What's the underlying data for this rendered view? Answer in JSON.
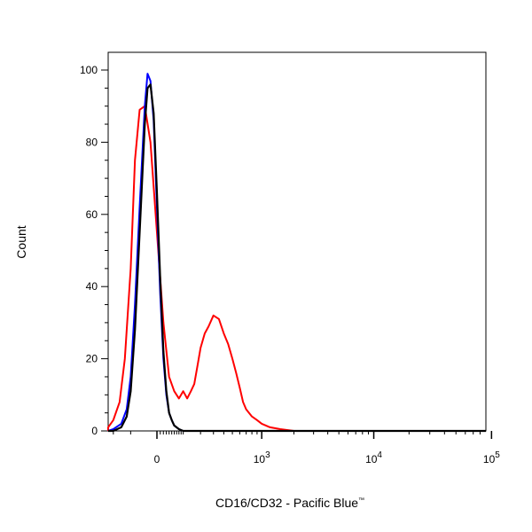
{
  "chart_data": {
    "type": "line",
    "title": "",
    "xlabel": "CD16/CD32 -  Pacific Blue",
    "xlabel_trademark": "™",
    "ylabel": "Count",
    "xscale": "biexponential",
    "xlim": [
      -300,
      200000
    ],
    "ylim": [
      0,
      105
    ],
    "y_ticks": [
      {
        "value": 0,
        "label": "0"
      },
      {
        "value": 20,
        "label": "20"
      },
      {
        "value": 40,
        "label": "40"
      },
      {
        "value": 60,
        "label": "60"
      },
      {
        "value": 80,
        "label": "80"
      },
      {
        "value": 100,
        "label": "100"
      }
    ],
    "x_ticks": [
      {
        "value": 0,
        "label": "0",
        "exp": ""
      },
      {
        "value": 1000,
        "label": "10",
        "exp": "3"
      },
      {
        "value": 10000,
        "label": "10",
        "exp": "4"
      },
      {
        "value": 100000,
        "label": "10",
        "exp": "5"
      }
    ],
    "grid": false,
    "legend": "none",
    "series": [
      {
        "color": "#ff0000",
        "x": [
          -300,
          -250,
          -200,
          -160,
          -130,
          -100,
          -80,
          -60,
          -40,
          -20,
          0,
          20,
          40,
          60,
          80,
          100,
          120,
          140,
          160,
          180,
          200,
          230,
          260,
          300,
          350,
          400,
          450,
          500,
          550,
          600,
          650,
          700,
          800,
          900,
          1000,
          1200,
          1500,
          2000,
          3000,
          10000,
          100000,
          200000
        ],
        "y": [
          0,
          1,
          3,
          8,
          20,
          45,
          75,
          89,
          90,
          80,
          55,
          30,
          15,
          11,
          9,
          11,
          9,
          11,
          13,
          18,
          23,
          27,
          29,
          32,
          31,
          27,
          24,
          20,
          16,
          12,
          8,
          6,
          4,
          3,
          2,
          1,
          0.5,
          0,
          0,
          0,
          0,
          0
        ]
      },
      {
        "color": "#0000ff",
        "x": [
          -300,
          -200,
          -150,
          -120,
          -100,
          -80,
          -60,
          -40,
          -30,
          -20,
          -10,
          0,
          10,
          20,
          30,
          40,
          50,
          60,
          80,
          100,
          150,
          200,
          1000,
          100000,
          200000
        ],
        "y": [
          0,
          0.5,
          2,
          6,
          15,
          35,
          62,
          90,
          99,
          97,
          86,
          62,
          38,
          20,
          10,
          5,
          3,
          1.5,
          0.5,
          0,
          0,
          0,
          0,
          0,
          0
        ]
      },
      {
        "color": "#000000",
        "x": [
          -300,
          -200,
          -150,
          -120,
          -100,
          -80,
          -60,
          -40,
          -30,
          -20,
          -10,
          0,
          10,
          20,
          30,
          40,
          50,
          60,
          80,
          100,
          150,
          200,
          1000,
          100000,
          200000
        ],
        "y": [
          0,
          0,
          1,
          4,
          11,
          28,
          55,
          85,
          95,
          96,
          88,
          66,
          42,
          22,
          11,
          5,
          3,
          1.5,
          0.5,
          0,
          0,
          0,
          0,
          0,
          0
        ]
      }
    ]
  }
}
